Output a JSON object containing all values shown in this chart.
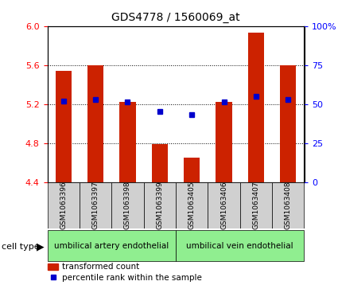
{
  "title": "GDS4778 / 1560069_at",
  "samples": [
    "GSM1063396",
    "GSM1063397",
    "GSM1063398",
    "GSM1063399",
    "GSM1063405",
    "GSM1063406",
    "GSM1063407",
    "GSM1063408"
  ],
  "bar_values": [
    5.54,
    5.6,
    5.22,
    4.79,
    4.65,
    5.22,
    5.93,
    5.6
  ],
  "dot_values": [
    5.23,
    5.25,
    5.22,
    5.12,
    5.09,
    5.22,
    5.28,
    5.25
  ],
  "ylim_left": [
    4.4,
    6.0
  ],
  "ylim_right": [
    0,
    100
  ],
  "yticks_left": [
    4.4,
    4.8,
    5.2,
    5.6,
    6.0
  ],
  "yticks_right": [
    0,
    25,
    50,
    75,
    100
  ],
  "bar_color": "#cc2200",
  "dot_color": "#0000cc",
  "bar_width": 0.5,
  "cell_types": [
    {
      "label": "umbilical artery endothelial",
      "start": 0,
      "end": 4
    },
    {
      "label": "umbilical vein endothelial",
      "start": 4,
      "end": 8
    }
  ],
  "cell_type_color": "#90ee90",
  "cell_type_label": "cell type",
  "legend_bar_label": "transformed count",
  "legend_dot_label": "percentile rank within the sample",
  "sample_box_color": "#d0d0d0"
}
